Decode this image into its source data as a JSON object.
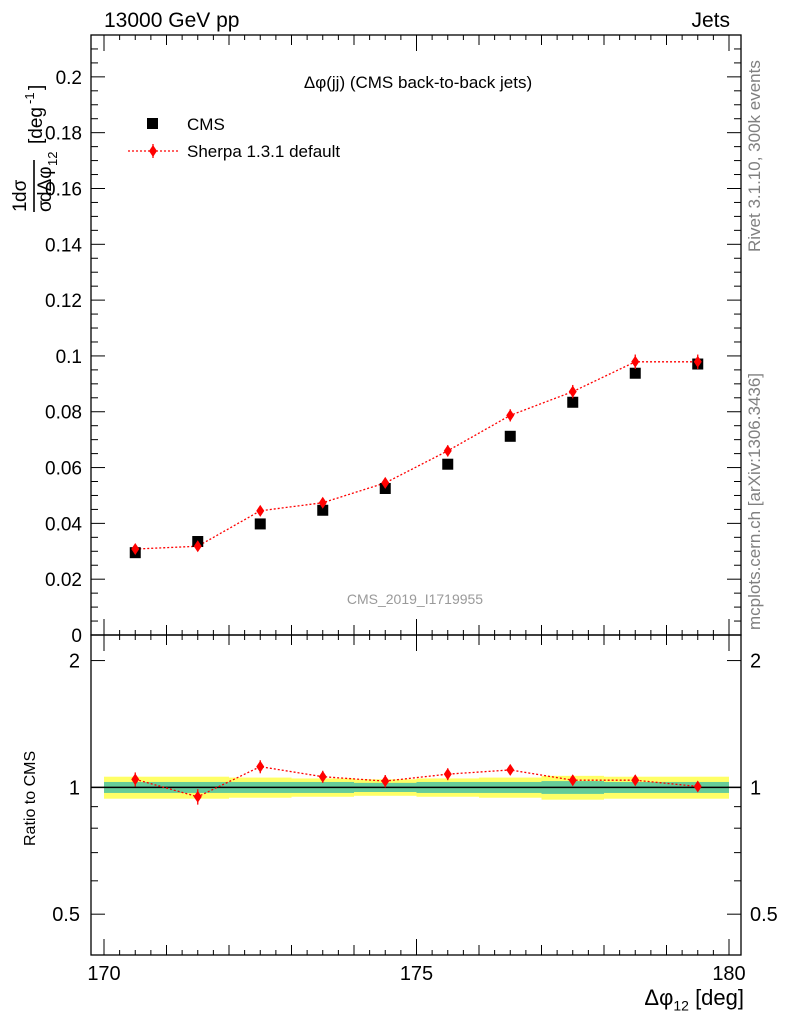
{
  "header": {
    "left": "13000 GeV pp",
    "right": "Jets"
  },
  "side_labels": {
    "rivet": "Rivet 3.1.10,  300k events",
    "mcplots": "mcplots.cern.ch [arXiv:1306.3436]"
  },
  "chart_data": [
    {
      "type": "scatter",
      "title": "Δφ(jj) (CMS back-to-back jets)",
      "watermark": "CMS_2019_I1719955",
      "xlabel": "Δφ12 [deg]",
      "ylabel": "1/σ dσ/dΔφ12 [deg-1]",
      "xlim": [
        170,
        180
      ],
      "ylim": [
        0,
        0.215
      ],
      "x_ticks": [
        "170",
        "175",
        "180"
      ],
      "y_ticks": [
        "0",
        "0.02",
        "0.04",
        "0.06",
        "0.08",
        "0.1",
        "0.12",
        "0.14",
        "0.16",
        "0.18",
        "0.2"
      ],
      "legend": {
        "position": "top-left"
      },
      "x": [
        170.5,
        171.5,
        172.5,
        173.5,
        174.5,
        175.5,
        176.5,
        177.5,
        178.5,
        179.5
      ],
      "series": [
        {
          "name": "CMS",
          "marker": "square",
          "color": "#000000",
          "values": [
            0.0295,
            0.0335,
            0.0398,
            0.0447,
            0.0525,
            0.0612,
            0.0712,
            0.0834,
            0.0938,
            0.0971
          ]
        },
        {
          "name": "Sherpa 1.3.1 default",
          "marker": "diamond",
          "line": "dotted",
          "color": "#ff0000",
          "values": [
            0.0308,
            0.0318,
            0.0445,
            0.0474,
            0.0545,
            0.066,
            0.0787,
            0.0872,
            0.0979,
            0.0979
          ],
          "errors": [
            0.0012,
            0.0012,
            0.0016,
            0.0016,
            0.0018,
            0.002,
            0.0022,
            0.0024,
            0.0026,
            0.0026
          ]
        }
      ]
    },
    {
      "type": "scatter",
      "ylabel": "Ratio to CMS",
      "xlim": [
        170,
        180
      ],
      "ylim": [
        0.4,
        2.3
      ],
      "y_scale": "log",
      "y_ticks": [
        "0.5",
        "1",
        "2"
      ],
      "x": [
        170.5,
        171.5,
        172.5,
        173.5,
        174.5,
        175.5,
        176.5,
        177.5,
        178.5,
        179.5
      ],
      "band_inner": [
        0.03,
        0.03,
        0.03,
        0.03,
        0.025,
        0.03,
        0.03,
        0.035,
        0.03,
        0.03
      ],
      "band_outer": [
        0.06,
        0.06,
        0.055,
        0.05,
        0.045,
        0.05,
        0.055,
        0.065,
        0.06,
        0.06
      ],
      "colors": {
        "band_inner": "#66cc99",
        "band_outer": "#ffff66",
        "reference": "#000000",
        "ratio": "#ff0000"
      },
      "series": [
        {
          "name": "Sherpa 1.3.1 default",
          "values": [
            1.045,
            0.95,
            1.12,
            1.06,
            1.035,
            1.075,
            1.1,
            1.04,
            1.04,
            1.005
          ],
          "errors": [
            0.04,
            0.04,
            0.04,
            0.035,
            0.035,
            0.035,
            0.03,
            0.03,
            0.03,
            0.028
          ]
        }
      ]
    }
  ]
}
